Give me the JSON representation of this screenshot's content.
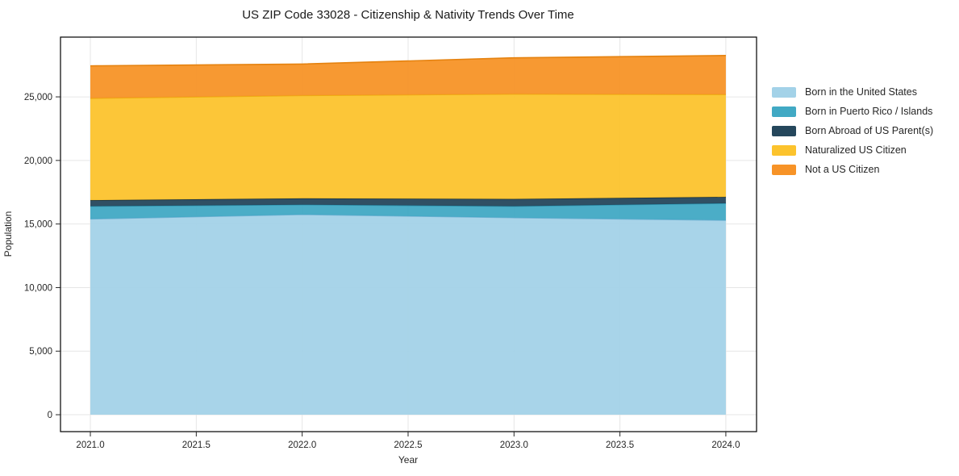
{
  "page": {
    "background": "#ffffff",
    "text_color": "#262626",
    "grid_color": "#e6e6e6",
    "axis_border_color": "#000000"
  },
  "chart_data": {
    "type": "area",
    "stacked": true,
    "title": "US ZIP Code 33028 - Citizenship & Nativity Trends Over Time",
    "xlabel": "Year",
    "ylabel": "Population",
    "x": [
      2021,
      2022,
      2023,
      2024
    ],
    "series": [
      {
        "name": "Born in the United States",
        "color": "#a3d2e8",
        "line_color": "#74b3d4",
        "values": [
          15400,
          15750,
          15500,
          15300
        ]
      },
      {
        "name": "Born in Puerto Rico / Islands",
        "color": "#41a9c4",
        "line_color": "#2e94af",
        "values": [
          1000,
          770,
          900,
          1330
        ]
      },
      {
        "name": "Born Abroad of US Parent(s)",
        "color": "#25475c",
        "line_color": "#1a3444",
        "values": [
          470,
          500,
          570,
          500
        ]
      },
      {
        "name": "Naturalized US Citizen",
        "color": "#fcc32d",
        "line_color": "#edaf10",
        "values": [
          8020,
          8090,
          8250,
          8060
        ]
      },
      {
        "name": "Not a US Citizen",
        "color": "#f79327",
        "line_color": "#e5820f",
        "values": [
          2550,
          2470,
          2850,
          3060
        ]
      }
    ],
    "stack_totals": [
      27440,
      27580,
      28070,
      28250
    ],
    "xticks": {
      "values": [
        2021.0,
        2021.5,
        2022.0,
        2022.5,
        2023.0,
        2023.5,
        2024.0
      ],
      "labels": [
        "2021.0",
        "2021.5",
        "2022.0",
        "2022.5",
        "2023.0",
        "2023.5",
        "2024.0"
      ]
    },
    "yticks": {
      "values": [
        0,
        5000,
        10000,
        15000,
        20000,
        25000
      ],
      "labels": [
        "0",
        "5,000",
        "10,000",
        "15,000",
        "20,000",
        "25,000"
      ]
    },
    "xlim": [
      2020.859,
      2024.145
    ],
    "ylim": [
      -1330,
      29700
    ],
    "grid": true,
    "legend_position": "right"
  }
}
